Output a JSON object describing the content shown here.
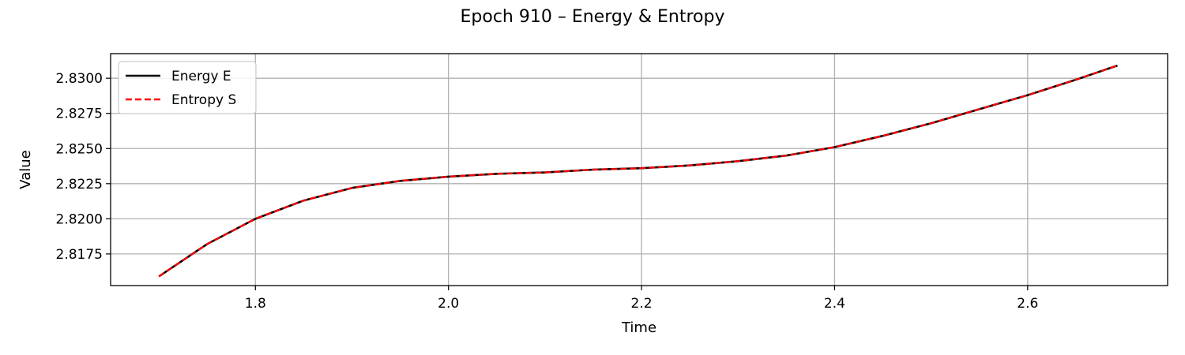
{
  "chart_data": {
    "type": "line",
    "title": "Epoch 910 – Energy & Entropy",
    "xlabel": "Time",
    "ylabel": "Value",
    "xlim": [
      1.65,
      2.745
    ],
    "ylim": [
      2.81525,
      2.83175
    ],
    "xticks": [
      1.8,
      2.0,
      2.2,
      2.4,
      2.6
    ],
    "xtick_labels": [
      "1.8",
      "2.0",
      "2.2",
      "2.4",
      "2.6"
    ],
    "yticks": [
      2.8175,
      2.82,
      2.8225,
      2.825,
      2.8275,
      2.83
    ],
    "ytick_labels": [
      "2.8175",
      "2.8200",
      "2.8225",
      "2.8250",
      "2.8275",
      "2.8300"
    ],
    "grid": true,
    "legend_position": "upper-left",
    "x": [
      1.7,
      1.75,
      1.8,
      1.85,
      1.9,
      1.95,
      2.0,
      2.05,
      2.1,
      2.15,
      2.2,
      2.25,
      2.3,
      2.35,
      2.4,
      2.45,
      2.5,
      2.55,
      2.6,
      2.65,
      2.693
    ],
    "series": [
      {
        "name": "Energy E",
        "color": "#000000",
        "style": "solid",
        "values": [
          2.8159,
          2.8182,
          2.82,
          2.8213,
          2.8222,
          2.8227,
          2.823,
          2.8232,
          2.8233,
          2.8235,
          2.8236,
          2.8238,
          2.8241,
          2.8245,
          2.8251,
          2.8259,
          2.8268,
          2.8278,
          2.8288,
          2.8299,
          2.8309
        ]
      },
      {
        "name": "Entropy S",
        "color": "#ff0000",
        "style": "dashed",
        "values": [
          2.8159,
          2.8182,
          2.82,
          2.8213,
          2.8222,
          2.8227,
          2.823,
          2.8232,
          2.8233,
          2.8235,
          2.8236,
          2.8238,
          2.8241,
          2.8245,
          2.8251,
          2.8259,
          2.8268,
          2.8278,
          2.8288,
          2.8299,
          2.8309
        ]
      }
    ]
  }
}
